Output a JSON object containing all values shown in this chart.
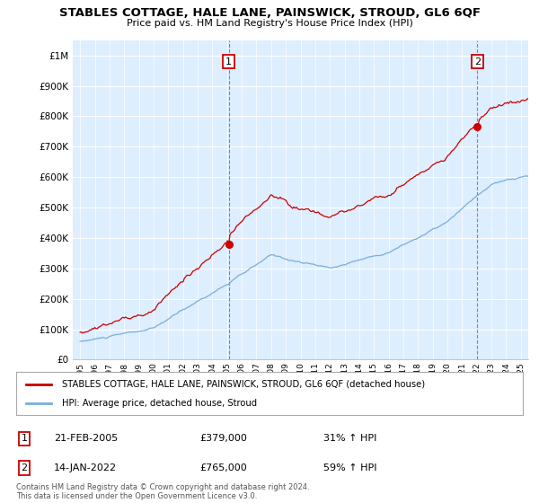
{
  "title": "STABLES COTTAGE, HALE LANE, PAINSWICK, STROUD, GL6 6QF",
  "subtitle": "Price paid vs. HM Land Registry's House Price Index (HPI)",
  "legend_label_red": "STABLES COTTAGE, HALE LANE, PAINSWICK, STROUD, GL6 6QF (detached house)",
  "legend_label_blue": "HPI: Average price, detached house, Stroud",
  "annotation1_date": "21-FEB-2005",
  "annotation1_price": "£379,000",
  "annotation1_hpi": "31% ↑ HPI",
  "annotation2_date": "14-JAN-2022",
  "annotation2_price": "£765,000",
  "annotation2_hpi": "59% ↑ HPI",
  "footnote": "Contains HM Land Registry data © Crown copyright and database right 2024.\nThis data is licensed under the Open Government Licence v3.0.",
  "sale1_x": 2005.12,
  "sale1_y": 379000,
  "sale2_x": 2022.04,
  "sale2_y": 765000,
  "ylim": [
    0,
    1050000
  ],
  "xlim_start": 1994.5,
  "xlim_end": 2025.5,
  "yticks": [
    0,
    100000,
    200000,
    300000,
    400000,
    500000,
    600000,
    700000,
    800000,
    900000,
    1000000
  ],
  "ytick_labels": [
    "£0",
    "£100K",
    "£200K",
    "£300K",
    "£400K",
    "£500K",
    "£600K",
    "£700K",
    "£800K",
    "£900K",
    "£1M"
  ],
  "xticks": [
    1995,
    1996,
    1997,
    1998,
    1999,
    2000,
    2001,
    2002,
    2003,
    2004,
    2005,
    2006,
    2007,
    2008,
    2009,
    2010,
    2011,
    2012,
    2013,
    2014,
    2015,
    2016,
    2017,
    2018,
    2019,
    2020,
    2021,
    2022,
    2023,
    2024,
    2025
  ],
  "red_color": "#cc0000",
  "blue_color": "#7aaddb",
  "plot_bg_color": "#ddeeff",
  "background_color": "#ffffff",
  "grid_color": "#ffffff"
}
